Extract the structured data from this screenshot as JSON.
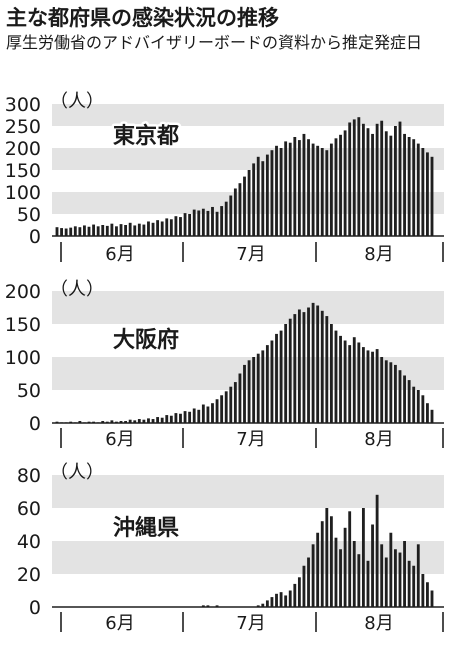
{
  "header": {
    "title": "主な都府県の感染状況の推移",
    "subtitle": "厚生労働省のアドバイザリーボードの資料から推定発症日"
  },
  "colors": {
    "bar": "#1f1f1f",
    "band": "#e3e3e3",
    "text": "#1a1a1a"
  },
  "chart_data": [
    {
      "type": "bar",
      "title": "東京都",
      "ylabel": "（人）",
      "ylim": [
        0,
        300
      ],
      "yticks": [
        0,
        50,
        100,
        150,
        200,
        250,
        300
      ],
      "grid": "alternating horizontal bands",
      "x_month_labels": [
        "6月",
        "7月",
        "8月"
      ],
      "x_range": "June 1 – August 22 (daily)",
      "values": [
        20,
        18,
        17,
        19,
        22,
        20,
        24,
        21,
        26,
        22,
        25,
        23,
        28,
        22,
        27,
        25,
        30,
        24,
        28,
        26,
        33,
        30,
        36,
        33,
        40,
        38,
        45,
        43,
        52,
        50,
        60,
        58,
        62,
        57,
        66,
        55,
        68,
        78,
        92,
        108,
        120,
        135,
        150,
        165,
        180,
        170,
        185,
        195,
        205,
        200,
        215,
        212,
        225,
        218,
        232,
        220,
        210,
        205,
        200,
        195,
        210,
        222,
        230,
        240,
        258,
        265,
        270,
        255,
        245,
        232,
        255,
        262,
        238,
        228,
        250,
        260,
        232,
        225,
        220,
        210,
        200,
        190,
        180
      ],
      "dates": "continued below",
      "values_note_removed": true
    },
    {
      "type": "bar",
      "title": "大阪府",
      "ylabel": "（人）",
      "ylim": [
        0,
        200
      ],
      "yticks": [
        0,
        50,
        100,
        150,
        200
      ],
      "x_month_labels": [
        "6月",
        "7月",
        "8月"
      ],
      "values": [
        2,
        1,
        1,
        2,
        1,
        3,
        1,
        2,
        2,
        1,
        3,
        2,
        4,
        2,
        3,
        3,
        5,
        4,
        6,
        5,
        7,
        6,
        9,
        8,
        12,
        11,
        15,
        14,
        18,
        17,
        22,
        20,
        28,
        25,
        30,
        36,
        42,
        48,
        55,
        62,
        75,
        88,
        95,
        100,
        105,
        110,
        118,
        125,
        135,
        140,
        150,
        158,
        165,
        172,
        168,
        175,
        182,
        178,
        170,
        162,
        150,
        140,
        132,
        125,
        118,
        130,
        122,
        115,
        110,
        108,
        112,
        100,
        95,
        92,
        88,
        80,
        72,
        65,
        55,
        50,
        42,
        30,
        20
      ]
    },
    {
      "type": "bar",
      "title": "沖縄県",
      "ylabel": "（人）",
      "ylim": [
        0,
        80
      ],
      "yticks": [
        0,
        20,
        40,
        60,
        80
      ],
      "x_month_labels": [
        "6月",
        "7月",
        "8月"
      ],
      "values": [
        0,
        0,
        0,
        0,
        0,
        0,
        0,
        0,
        0,
        0,
        0,
        0,
        0,
        0,
        0,
        0,
        0,
        0,
        0,
        0,
        0,
        0,
        0,
        0,
        0,
        0,
        0,
        0,
        0,
        0,
        0,
        0,
        1,
        1,
        0,
        1,
        0,
        0,
        0,
        0,
        0,
        0,
        0,
        0,
        1,
        2,
        4,
        6,
        8,
        9,
        7,
        10,
        14,
        18,
        25,
        30,
        38,
        45,
        52,
        60,
        55,
        42,
        35,
        48,
        58,
        40,
        32,
        60,
        28,
        50,
        68,
        38,
        30,
        45,
        35,
        33,
        40,
        28,
        25,
        38,
        20,
        15,
        10
      ]
    }
  ]
}
